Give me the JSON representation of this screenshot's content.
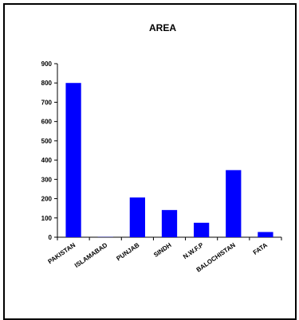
{
  "chart_data": {
    "type": "bar",
    "title": "AREA",
    "xlabel": "",
    "ylabel": "",
    "categories": [
      "PAKISTAN",
      "ISLAMABAD",
      "PUNJAB",
      "SINDH",
      "N.W.F.P",
      "BALOCHISTAN",
      "FATA"
    ],
    "values": [
      800,
      1,
      206,
      141,
      75,
      348,
      27
    ],
    "ylim": [
      0,
      900
    ],
    "yticks": [
      0,
      100,
      200,
      300,
      400,
      500,
      600,
      700,
      800,
      900
    ],
    "grid": false,
    "legend": "none",
    "bar_color": "#0000ff",
    "background_color": "#ffffff"
  }
}
